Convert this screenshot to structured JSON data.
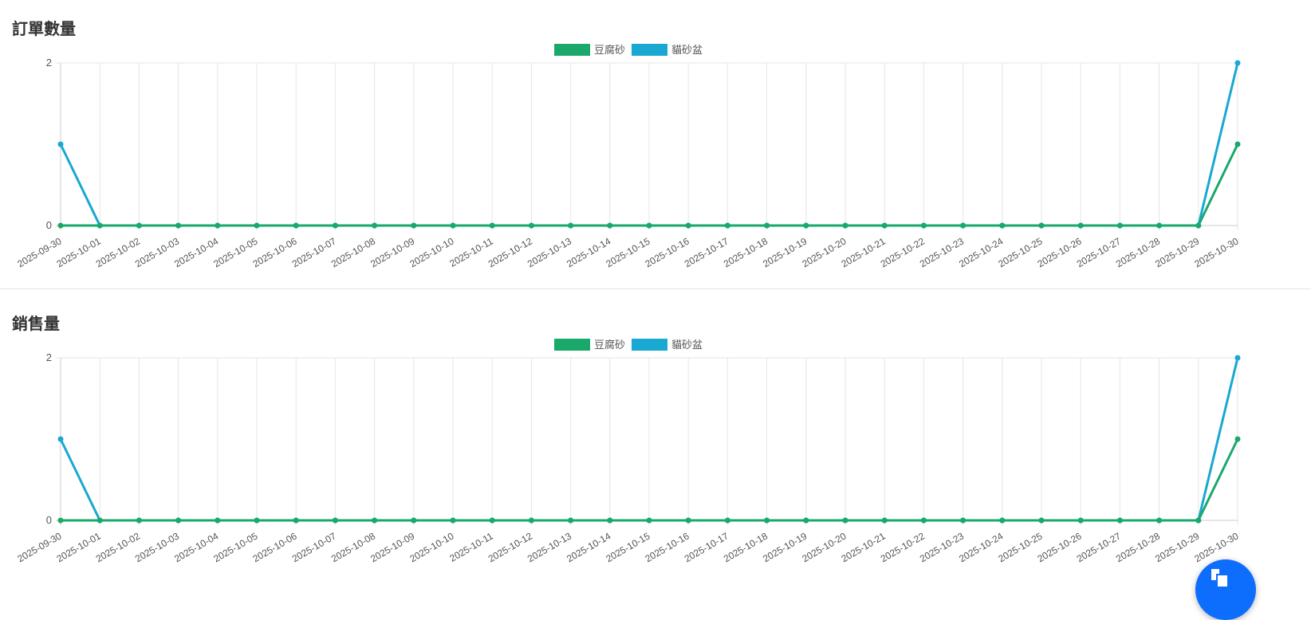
{
  "chart_data": [
    {
      "type": "line",
      "title": "訂單數量",
      "legend_position": "top",
      "grid": true,
      "ylim": [
        0,
        2
      ],
      "yticks": [
        0,
        2
      ],
      "x": [
        "2025-09-30",
        "2025-10-01",
        "2025-10-02",
        "2025-10-03",
        "2025-10-04",
        "2025-10-05",
        "2025-10-06",
        "2025-10-07",
        "2025-10-08",
        "2025-10-09",
        "2025-10-10",
        "2025-10-11",
        "2025-10-12",
        "2025-10-13",
        "2025-10-14",
        "2025-10-15",
        "2025-10-16",
        "2025-10-17",
        "2025-10-18",
        "2025-10-19",
        "2025-10-20",
        "2025-10-21",
        "2025-10-22",
        "2025-10-23",
        "2025-10-24",
        "2025-10-25",
        "2025-10-26",
        "2025-10-27",
        "2025-10-28",
        "2025-10-29",
        "2025-10-30"
      ],
      "series": [
        {
          "name": "豆腐砂",
          "color": "#1aa86b",
          "values": [
            0,
            0,
            0,
            0,
            0,
            0,
            0,
            0,
            0,
            0,
            0,
            0,
            0,
            0,
            0,
            0,
            0,
            0,
            0,
            0,
            0,
            0,
            0,
            0,
            0,
            0,
            0,
            0,
            0,
            0,
            1
          ]
        },
        {
          "name": "貓砂盆",
          "color": "#18a8d2",
          "values": [
            1,
            0,
            0,
            0,
            0,
            0,
            0,
            0,
            0,
            0,
            0,
            0,
            0,
            0,
            0,
            0,
            0,
            0,
            0,
            0,
            0,
            0,
            0,
            0,
            0,
            0,
            0,
            0,
            0,
            0,
            2
          ]
        }
      ]
    },
    {
      "type": "line",
      "title": "銷售量",
      "legend_position": "top",
      "grid": true,
      "ylim": [
        0,
        2
      ],
      "yticks": [
        0,
        2
      ],
      "x": [
        "2025-09-30",
        "2025-10-01",
        "2025-10-02",
        "2025-10-03",
        "2025-10-04",
        "2025-10-05",
        "2025-10-06",
        "2025-10-07",
        "2025-10-08",
        "2025-10-09",
        "2025-10-10",
        "2025-10-11",
        "2025-10-12",
        "2025-10-13",
        "2025-10-14",
        "2025-10-15",
        "2025-10-16",
        "2025-10-17",
        "2025-10-18",
        "2025-10-19",
        "2025-10-20",
        "2025-10-21",
        "2025-10-22",
        "2025-10-23",
        "2025-10-24",
        "2025-10-25",
        "2025-10-26",
        "2025-10-27",
        "2025-10-28",
        "2025-10-29",
        "2025-10-30"
      ],
      "series": [
        {
          "name": "豆腐砂",
          "color": "#1aa86b",
          "values": [
            0,
            0,
            0,
            0,
            0,
            0,
            0,
            0,
            0,
            0,
            0,
            0,
            0,
            0,
            0,
            0,
            0,
            0,
            0,
            0,
            0,
            0,
            0,
            0,
            0,
            0,
            0,
            0,
            0,
            0,
            1
          ]
        },
        {
          "name": "貓砂盆",
          "color": "#18a8d2",
          "values": [
            1,
            0,
            0,
            0,
            0,
            0,
            0,
            0,
            0,
            0,
            0,
            0,
            0,
            0,
            0,
            0,
            0,
            0,
            0,
            0,
            0,
            0,
            0,
            0,
            0,
            0,
            0,
            0,
            0,
            0,
            2
          ]
        }
      ]
    }
  ],
  "fab": {
    "icon": "copy-icon"
  }
}
